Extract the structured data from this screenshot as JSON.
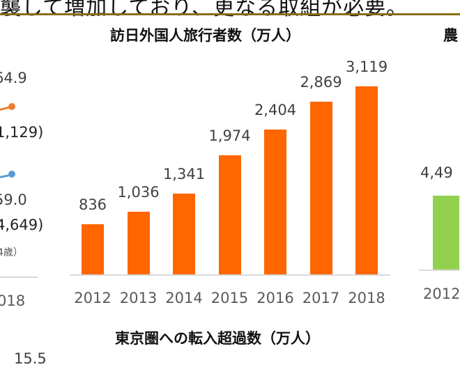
{
  "headline": "襲して増加しており、更なる取組が必要。",
  "colors": {
    "bar_orange": "#ff6600",
    "bar_green": "#92d050",
    "line_orange": "#ed7d31",
    "line_blue": "#5b9bd5",
    "rule": "#8a6d10"
  },
  "left_chart_fragment": {
    "value_top": "64.9",
    "value_top_sub": "1,129)",
    "value_bottom": "59.0",
    "value_bottom_sub": "4,649)",
    "note": "4歳）",
    "year": "018"
  },
  "right_chart_fragment": {
    "title": "農",
    "value": "4,49",
    "year": "2012"
  },
  "bottom_chart_fragment": {
    "title": "東京圏への転入超過数（万人）",
    "value": "15.5"
  },
  "chart_data": {
    "type": "bar",
    "title": "訪日外国人旅行者数（万人）",
    "categories": [
      "2012",
      "2013",
      "2014",
      "2015",
      "2016",
      "2017",
      "2018"
    ],
    "values": [
      836,
      1036,
      1341,
      1974,
      2404,
      2869,
      3119
    ],
    "labels": [
      "836",
      "1,036",
      "1,341",
      "1,974",
      "2,404",
      "2,869",
      "3,119"
    ],
    "xlabel": "",
    "ylabel": "万人",
    "ylim": [
      0,
      3300
    ],
    "grid": false,
    "legend": "none"
  }
}
